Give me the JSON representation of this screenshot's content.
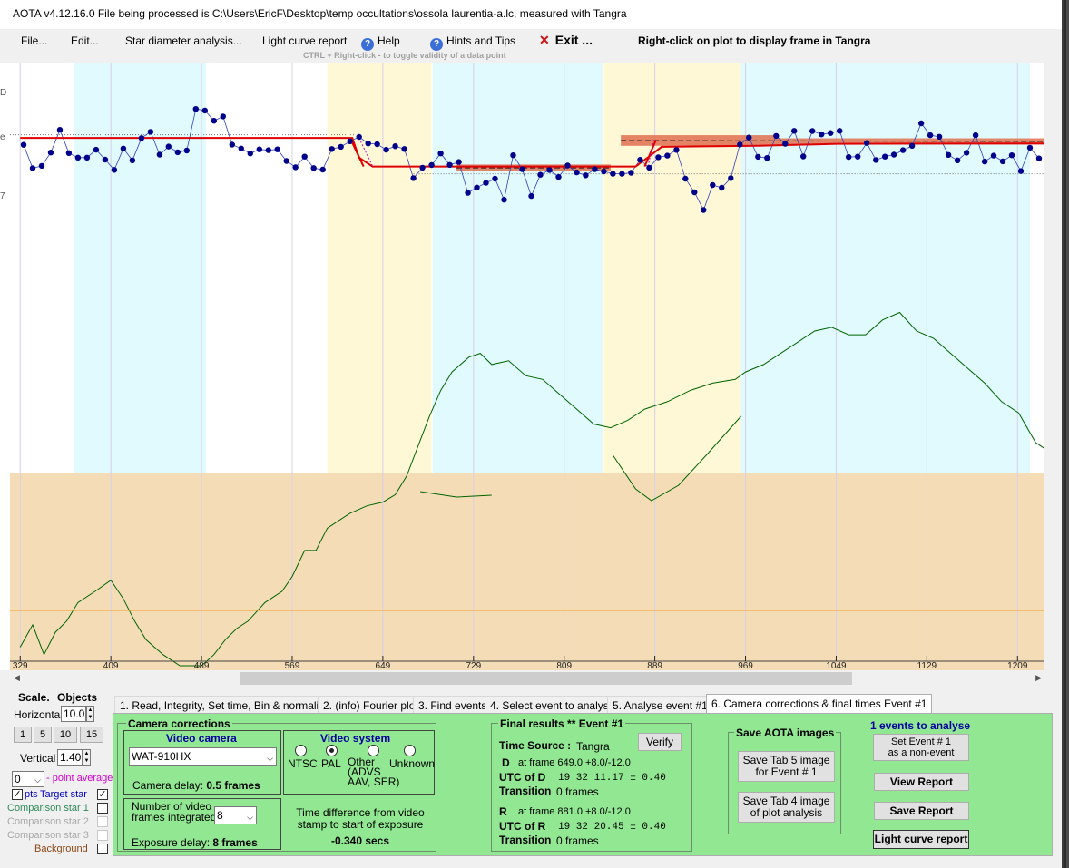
{
  "window": {
    "title": "AOTA v4.12.16.0    File being processed is C:\\Users\\EricF\\Desktop\\temp occultations\\ossola laurentia-a.lc, measured with Tangra"
  },
  "menu": {
    "file": "File...",
    "edit": "Edit...",
    "star_diameter": "Star diameter analysis...",
    "light_curve_report": "Light curve report",
    "help": "Help",
    "hints": "Hints and Tips",
    "exit": "Exit ...",
    "right_click_hint": "Right-click on plot to display frame in Tangra",
    "ctrl_hint": "CTRL + Right-click   -  to toggle validity of a data point"
  },
  "left_edge_glyphs": [
    "D",
    "e",
    "7"
  ],
  "plot": {
    "x_tick_labels": [
      "329",
      "409",
      "489",
      "569",
      "649",
      "729",
      "809",
      "889",
      "969",
      "1049",
      "1129",
      "1209"
    ],
    "x_tick_values": [
      329,
      409,
      489,
      569,
      649,
      729,
      809,
      889,
      969,
      1049,
      1129,
      1209
    ],
    "colors": {
      "data_point": "#00008b",
      "model": "#e00000",
      "uncertainty": "#e07050",
      "cyan_band": "#e0fafd",
      "yellow_band": "#fff8d6",
      "lower_band": "#f4ddb6",
      "secondary_curve": "#006400",
      "orange_line": "#f0a020"
    }
  },
  "chart_data": {
    "type": "scatter",
    "xlabel": "",
    "ylabel": "",
    "xlim": [
      320,
      1232
    ],
    "ylim": [
      0,
      1
    ],
    "x_ticks": [
      329,
      409,
      489,
      569,
      649,
      729,
      809,
      889,
      969,
      1049,
      1129,
      1209
    ],
    "target_star": {
      "x": [
        332,
        340,
        348,
        356,
        364,
        372,
        380,
        388,
        396,
        404,
        412,
        420,
        428,
        436,
        444,
        452,
        460,
        468,
        476,
        484,
        492,
        500,
        508,
        516,
        524,
        532,
        540,
        548,
        556,
        564,
        572,
        580,
        588,
        596,
        604,
        612,
        620,
        628,
        636,
        644,
        652,
        660,
        668,
        676,
        684,
        692,
        700,
        708,
        716,
        724,
        732,
        740,
        748,
        756,
        764,
        772,
        780,
        788,
        796,
        804,
        812,
        820,
        828,
        836,
        844,
        852,
        860,
        868,
        876,
        884,
        892,
        900,
        908,
        916,
        924,
        932,
        940,
        948,
        956,
        964,
        972,
        980,
        988,
        996,
        1004,
        1012,
        1020,
        1028,
        1036,
        1044,
        1052,
        1060,
        1068,
        1076,
        1084,
        1092,
        1100,
        1108,
        1116,
        1124,
        1132,
        1140,
        1148,
        1156,
        1164,
        1172,
        1180,
        1188,
        1196,
        1204,
        1212,
        1220,
        1228
      ],
      "y": [
        0.665,
        0.546,
        0.558,
        0.626,
        0.741,
        0.623,
        0.6,
        0.6,
        0.64,
        0.59,
        0.538,
        0.646,
        0.586,
        0.699,
        0.731,
        0.615,
        0.656,
        0.627,
        0.636,
        0.847,
        0.839,
        0.787,
        0.809,
        0.666,
        0.646,
        0.621,
        0.642,
        0.638,
        0.642,
        0.583,
        0.551,
        0.605,
        0.547,
        0.539,
        0.644,
        0.655,
        0.683,
        0.705,
        0.672,
        0.668,
        0.64,
        0.658,
        0.644,
        0.496,
        0.549,
        0.562,
        0.621,
        0.563,
        0.578,
        0.421,
        0.448,
        0.472,
        0.493,
        0.386,
        0.612,
        0.541,
        0.405,
        0.513,
        0.537,
        0.502,
        0.56,
        0.525,
        0.51,
        0.541,
        0.53,
        0.518,
        0.518,
        0.523,
        0.589,
        0.549,
        0.602,
        0.61,
        0.639,
        0.493,
        0.424,
        0.334,
        0.461,
        0.447,
        0.496,
        0.667,
        0.702,
        0.604,
        0.598,
        0.71,
        0.67,
        0.736,
        0.606,
        0.735,
        0.718,
        0.725,
        0.736,
        0.603,
        0.605,
        0.674,
        0.588,
        0.605,
        0.615,
        0.638,
        0.66,
        0.774,
        0.714,
        0.706,
        0.614,
        0.586,
        0.625,
        0.714,
        0.58,
        0.61,
        0.581,
        0.612,
        0.532,
        0.65,
        0.596
      ]
    },
    "comparison_curve": {
      "x": [
        329,
        340,
        350,
        360,
        370,
        380,
        395,
        409,
        420,
        430,
        440,
        455,
        470,
        489,
        500,
        510,
        520,
        530,
        545,
        560,
        569,
        580,
        590,
        600,
        610,
        620,
        635,
        649,
        660,
        670,
        680,
        690,
        700,
        710,
        725,
        735,
        745,
        760,
        775,
        790,
        805,
        820,
        835,
        850,
        865,
        880,
        900,
        920,
        940,
        960,
        969,
        985,
        1000,
        1015,
        1030,
        1045,
        1060,
        1075,
        1090,
        1105,
        1120,
        1135,
        1150,
        1165,
        1180,
        1195,
        1210,
        1225,
        1235
      ],
      "y": [
        0.05,
        0.11,
        0.03,
        0.09,
        0.12,
        0.17,
        0.2,
        0.23,
        0.18,
        0.12,
        0.07,
        0.03,
        0.0,
        0.0,
        0.03,
        0.07,
        0.1,
        0.12,
        0.17,
        0.2,
        0.24,
        0.31,
        0.31,
        0.37,
        0.39,
        0.41,
        0.43,
        0.44,
        0.46,
        0.51,
        0.59,
        0.67,
        0.74,
        0.79,
        0.83,
        0.84,
        0.81,
        0.82,
        0.78,
        0.77,
        0.73,
        0.69,
        0.65,
        0.64,
        0.66,
        0.69,
        0.71,
        0.74,
        0.76,
        0.77,
        0.79,
        0.81,
        0.84,
        0.87,
        0.9,
        0.91,
        0.89,
        0.89,
        0.93,
        0.95,
        0.9,
        0.88,
        0.84,
        0.8,
        0.76,
        0.71,
        0.68,
        0.6,
        0.58
      ]
    },
    "model_line": {
      "x": [
        329,
        622,
        628,
        640,
        661,
        711,
        860,
        872,
        884,
        895,
        980,
        1050,
        1232
      ],
      "y": [
        0.7,
        0.7,
        0.6,
        0.555,
        0.555,
        0.555,
        0.555,
        0.555,
        0.606,
        0.655,
        0.66,
        0.67,
        0.672
      ]
    },
    "uncertainty_boxes": [
      {
        "x0": 714,
        "x1": 850,
        "y0": 0.53,
        "y1": 0.565
      },
      {
        "x0": 859,
        "x1": 997,
        "y0": 0.66,
        "y1": 0.714
      },
      {
        "x0": 997,
        "x1": 1232,
        "y0": 0.666,
        "y1": 0.698
      }
    ],
    "baselines": [
      0.716,
      0.518
    ]
  },
  "left_panel": {
    "scale_label": "Scale.",
    "objects_label": "Objects",
    "horizontal_label": "Horizontal",
    "horizontal_value": "10.0",
    "scale_buttons": [
      "1",
      "5",
      "10",
      "15"
    ],
    "vertical_label": "Vertical",
    "vertical_value": "1.40",
    "point_avg_value": "0",
    "point_avg_label": "- point average",
    "dots_label": "pts",
    "target_star_label": "Target star",
    "comparison_1_label": "Comparison star 1",
    "comparison_2_label": "Comparison star 2",
    "comparison_3_label": "Comparison star 3",
    "background_label": "Background"
  },
  "tabs": [
    "1.  Read, Integrity, Set time, Bin & normalise",
    "2. (info)  Fourier plot",
    "3. Find events",
    "4. Select event to analyse",
    "5. Analyse event #1",
    "6. Camera corrections & final times Event #1"
  ],
  "camera": {
    "group_title": "Camera corrections",
    "video_camera_title": "Video camera",
    "camera_model": "WAT-910HX",
    "camera_delay_label": "Camera delay: ",
    "camera_delay_value": "0.5 frames",
    "video_system_title": "Video system",
    "video_systems": [
      "NTSC",
      "PAL",
      "Other\n(ADVS\nAAV, SER)",
      "Unknown"
    ],
    "frames_integrated_label": "Number of video\nframes integrated",
    "frames_integrated_value": "8",
    "exposure_delay_label": "Exposure delay: ",
    "exposure_delay_value": "8 frames",
    "time_diff_label": "Time difference from video\nstamp to start of exposure",
    "time_diff_value": "-0.340 secs"
  },
  "final_results": {
    "title": "Final results  **  Event #1",
    "verify": "Verify",
    "time_source_label": "Time Source :",
    "time_source_value": "Tangra",
    "d_label": "D",
    "d_frame": "at frame 649.0  +8.0/-12.0",
    "utc_d_label": "UTC of D",
    "utc_d_value": "19 32 11.17  ± 0.40",
    "transition_label": "Transition",
    "d_transition": "0 frames",
    "r_label": "R",
    "r_frame": "at frame 881.0  +8.0/-12.0",
    "utc_r_label": "UTC of R",
    "utc_r_value": "19 32 20.45  ± 0.40",
    "r_transition": "0 frames"
  },
  "save_images": {
    "title": "Save AOTA images",
    "tab5": "Save Tab 5 image\nfor Event # 1",
    "tab4": "Save Tab 4 image\nof plot analysis"
  },
  "events": {
    "title": "1  events to analyse",
    "set_non_event": "Set Event # 1\nas a non-event",
    "view_report": "View Report",
    "save_report": "Save Report",
    "light_curve_report": "Light curve report"
  }
}
